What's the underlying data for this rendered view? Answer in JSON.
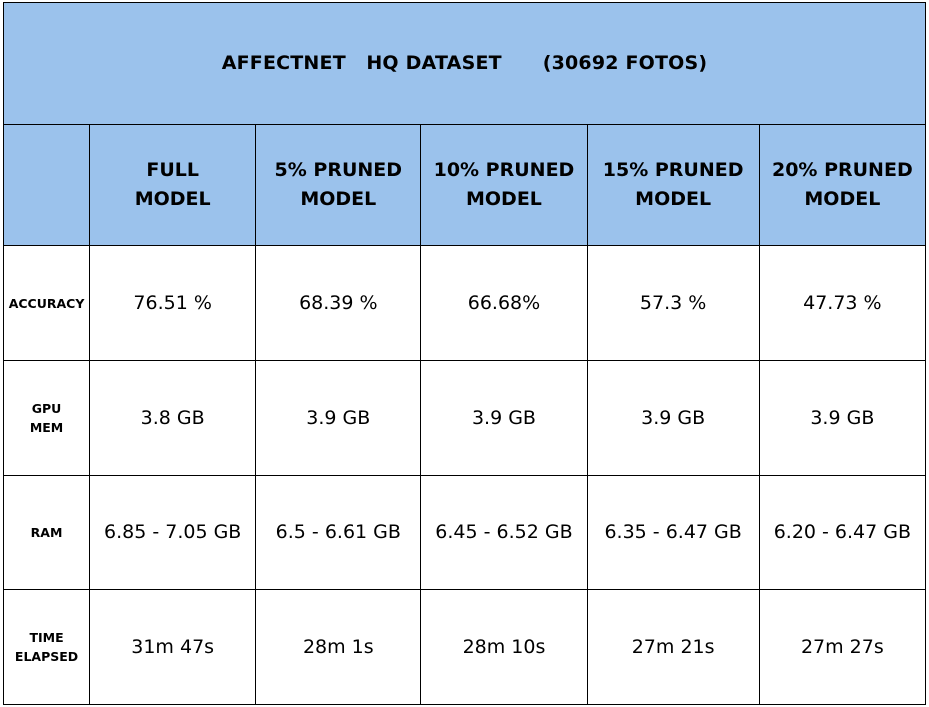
{
  "table": {
    "title": "AFFECTNET   HQ DATASET      (30692 FOTOS)",
    "header_bg": "#9bc2ec",
    "columns": [
      {
        "line1": "FULL",
        "line2": "MODEL"
      },
      {
        "line1": "5% PRUNED",
        "line2": "MODEL"
      },
      {
        "line1": "10% PRUNED",
        "line2": "MODEL"
      },
      {
        "line1": "15% PRUNED",
        "line2": "MODEL"
      },
      {
        "line1": "20% PRUNED",
        "line2": "MODEL"
      }
    ],
    "rows": [
      {
        "metric_line1": "ACCURACY",
        "metric_line2": "",
        "values": [
          "76.51 %",
          "68.39 %",
          "66.68%",
          "57.3 %",
          "47.73 %"
        ]
      },
      {
        "metric_line1": "GPU",
        "metric_line2": "MEM",
        "values": [
          "3.8 GB",
          "3.9 GB",
          "3.9 GB",
          "3.9 GB",
          "3.9 GB"
        ]
      },
      {
        "metric_line1": "RAM",
        "metric_line2": "",
        "values": [
          "6.85 - 7.05 GB",
          "6.5 - 6.61 GB",
          "6.45 - 6.52 GB",
          "6.35 - 6.47 GB",
          "6.20 - 6.47 GB"
        ]
      },
      {
        "metric_line1": "TIME",
        "metric_line2": "ELAPSED",
        "values": [
          "31m 47s",
          "28m 1s",
          "28m 10s",
          "27m 21s",
          "27m 27s"
        ]
      }
    ]
  }
}
